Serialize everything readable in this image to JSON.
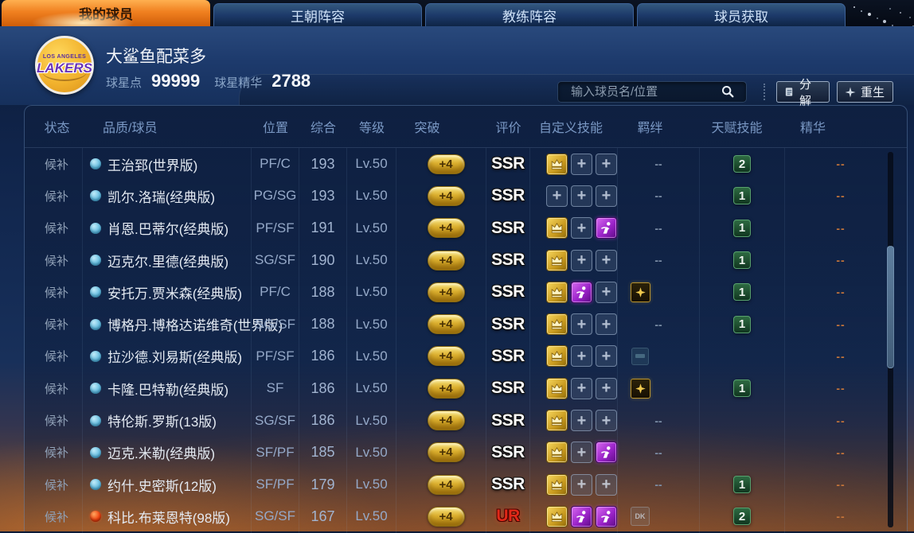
{
  "tabs": [
    {
      "label": "我的球员",
      "active": true
    },
    {
      "label": "王朝阵容",
      "active": false
    },
    {
      "label": "教练阵容",
      "active": false
    },
    {
      "label": "球员获取",
      "active": false
    }
  ],
  "header": {
    "logo": {
      "top_text": "LOS ANGELES",
      "main_text": "LAKERS"
    },
    "user_name": "大鲨鱼配菜多",
    "star_points": {
      "label": "球星点",
      "value": "99999"
    },
    "star_essence": {
      "label": "球星精华",
      "value": "2788"
    },
    "search": {
      "placeholder": "输入球员名/位置"
    },
    "buttons": {
      "decompose": "分解",
      "rebirth": "重生"
    }
  },
  "table": {
    "columns": [
      "状态",
      "品质/球员",
      "位置",
      "综合",
      "等级",
      "突破",
      "评价",
      "自定义技能",
      "羁绊",
      "天赋技能",
      "精华"
    ],
    "rows": [
      {
        "status": "候补",
        "quality": "blue",
        "name": "王治郅(世界版)",
        "position": "PF/C",
        "overall": "193",
        "level": "Lv.50",
        "breakthrough": "+4",
        "rating": "SSR",
        "skills": [
          "gold",
          "plus",
          "plus"
        ],
        "bond": "dash",
        "bond_label": "--",
        "talent": "2",
        "essence": "--"
      },
      {
        "status": "候补",
        "quality": "blue",
        "name": "凯尔.洛瑞(经典版)",
        "position": "PG/SG",
        "overall": "193",
        "level": "Lv.50",
        "breakthrough": "+4",
        "rating": "SSR",
        "skills": [
          "plus",
          "plus",
          "plus"
        ],
        "bond": "dash",
        "bond_label": "--",
        "talent": "1",
        "essence": "--"
      },
      {
        "status": "候补",
        "quality": "blue",
        "name": "肖恩.巴蒂尔(经典版)",
        "position": "PF/SF",
        "overall": "191",
        "level": "Lv.50",
        "breakthrough": "+4",
        "rating": "SSR",
        "skills": [
          "gold",
          "plus",
          "purple"
        ],
        "bond": "dash",
        "bond_label": "--",
        "talent": "1",
        "essence": "--"
      },
      {
        "status": "候补",
        "quality": "blue",
        "name": "迈克尔.里德(经典版)",
        "position": "SG/SF",
        "overall": "190",
        "level": "Lv.50",
        "breakthrough": "+4",
        "rating": "SSR",
        "skills": [
          "gold",
          "plus",
          "plus"
        ],
        "bond": "dash",
        "bond_label": "--",
        "talent": "1",
        "essence": "--"
      },
      {
        "status": "候补",
        "quality": "blue",
        "name": "安托万.贾米森(经典版)",
        "position": "PF/C",
        "overall": "188",
        "level": "Lv.50",
        "breakthrough": "+4",
        "rating": "SSR",
        "skills": [
          "gold",
          "purple",
          "plus"
        ],
        "bond": "gold",
        "bond_label": "",
        "talent": "1",
        "essence": "--"
      },
      {
        "status": "候补",
        "quality": "blue",
        "name": "博格丹.博格达诺维奇(世界版)",
        "position": "SG/SF",
        "overall": "188",
        "level": "Lv.50",
        "breakthrough": "+4",
        "rating": "SSR",
        "skills": [
          "gold",
          "plus",
          "plus"
        ],
        "bond": "dash",
        "bond_label": "--",
        "talent": "1",
        "essence": "--"
      },
      {
        "status": "候补",
        "quality": "blue",
        "name": "拉沙德.刘易斯(经典版)",
        "position": "PF/SF",
        "overall": "186",
        "level": "Lv.50",
        "breakthrough": "+4",
        "rating": "SSR",
        "skills": [
          "gold",
          "plus",
          "plus"
        ],
        "bond": "faint",
        "bond_label": "",
        "talent": "",
        "essence": "--"
      },
      {
        "status": "候补",
        "quality": "blue",
        "name": "卡隆.巴特勒(经典版)",
        "position": "SF",
        "overall": "186",
        "level": "Lv.50",
        "breakthrough": "+4",
        "rating": "SSR",
        "skills": [
          "gold",
          "plus",
          "plus"
        ],
        "bond": "gold",
        "bond_label": "",
        "talent": "1",
        "essence": "--"
      },
      {
        "status": "候补",
        "quality": "blue",
        "name": "特伦斯.罗斯(13版)",
        "position": "SG/SF",
        "overall": "186",
        "level": "Lv.50",
        "breakthrough": "+4",
        "rating": "SSR",
        "skills": [
          "gold",
          "plus",
          "plus"
        ],
        "bond": "dash",
        "bond_label": "--",
        "talent": "",
        "essence": "--"
      },
      {
        "status": "候补",
        "quality": "blue",
        "name": "迈克.米勒(经典版)",
        "position": "SF/PF",
        "overall": "185",
        "level": "Lv.50",
        "breakthrough": "+4",
        "rating": "SSR",
        "skills": [
          "gold",
          "plus",
          "purple"
        ],
        "bond": "dash",
        "bond_label": "--",
        "talent": "",
        "essence": "--"
      },
      {
        "status": "候补",
        "quality": "blue",
        "name": "约什.史密斯(12版)",
        "position": "SF/PF",
        "overall": "179",
        "level": "Lv.50",
        "breakthrough": "+4",
        "rating": "SSR",
        "skills": [
          "gold",
          "plus",
          "plus"
        ],
        "bond": "dash",
        "bond_label": "--",
        "talent": "1",
        "essence": "--"
      },
      {
        "status": "候补",
        "quality": "red",
        "name": "科比.布莱恩特(98版)",
        "position": "SG/SF",
        "overall": "167",
        "level": "Lv.50",
        "breakthrough": "+4",
        "rating": "UR",
        "skills": [
          "gold",
          "purple",
          "purple"
        ],
        "bond": "dk",
        "bond_label": "DK",
        "talent": "2",
        "essence": "--"
      }
    ]
  },
  "colors": {
    "accent_orange": "#f08020",
    "rating_ur": "#e02818",
    "talent_green": "#2e6b42",
    "essence_orange": "#c8763a",
    "quality_blue": "#72c4e4",
    "quality_red": "#f24612"
  }
}
